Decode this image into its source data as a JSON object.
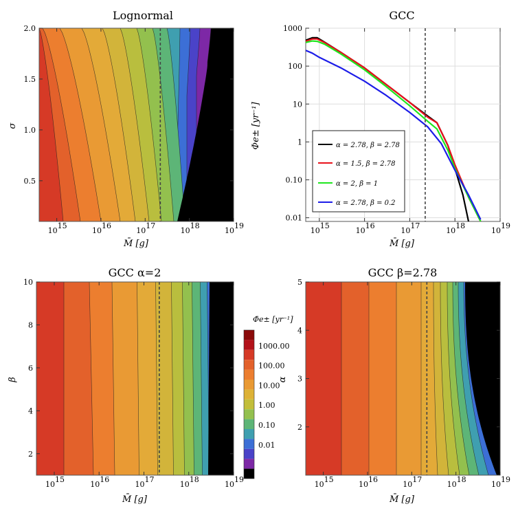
{
  "chart_data": [
    {
      "type": "contour",
      "title": "Lognormal",
      "xlabel": "M̄ [g]",
      "ylabel": "σ",
      "xscale": "log",
      "xlim": [
        400000000000000.0,
        1e+19
      ],
      "ylim": [
        0.1,
        2.0
      ],
      "x_tick_labels": [
        "10",
        "10",
        "10",
        "10",
        "10"
      ],
      "x_tick_exponents": [
        "15",
        "16",
        "17",
        "18",
        "19"
      ],
      "y_tick_labels": [
        "0.5",
        "1.0",
        "1.5",
        "2.0"
      ],
      "y_ticks": [
        0.5,
        1.0,
        1.5,
        2.0
      ],
      "vertical_line_x": 2.2e+17,
      "contour_levels_log10": [
        3,
        2.5,
        2,
        1.5,
        1,
        0.5,
        0,
        -0.5,
        -1,
        -1.5,
        -2,
        -2.5
      ]
    },
    {
      "type": "line",
      "title": "GCC",
      "xlabel": "M̄ [g]",
      "ylabel": "Φe± [yr⁻¹]",
      "xscale": "log",
      "yscale": "log",
      "xlim": [
        500000000000000.0,
        1e+19
      ],
      "ylim": [
        0.008,
        1000
      ],
      "x_tick_exponents": [
        "15",
        "16",
        "17",
        "18",
        "19"
      ],
      "y_tick_labels": [
        "1000",
        "100",
        "10",
        "1",
        "0.10",
        "0.01"
      ],
      "y_ticks": [
        1000,
        100,
        10,
        1,
        0.1,
        0.01
      ],
      "vertical_line_x": 2.2e+17,
      "legend_position": "bottom-left",
      "series": [
        {
          "name": "α = 2.78, β = 2.78",
          "color": "#000000",
          "x": [
            500000000000000.0,
            700000000000000.0,
            900000000000000.0,
            1300000000000000.0,
            3000000000000000.0,
            1e+16,
            3e+16,
            1e+17,
            2.5e+17,
            4e+17,
            7e+17,
            1e+18,
            1.5e+18,
            2e+18
          ],
          "y": [
            480,
            560,
            560,
            430,
            230,
            90,
            33,
            11,
            4.8,
            3.2,
            0.8,
            0.2,
            0.04,
            0.008
          ]
        },
        {
          "name": "α = 1.5, β = 2.78",
          "color": "#e8111b",
          "x": [
            500000000000000.0,
            700000000000000.0,
            900000000000000.0,
            1300000000000000.0,
            3000000000000000.0,
            1e+16,
            3e+16,
            1e+17,
            2.5e+17,
            4e+17,
            7e+17,
            1e+18,
            2e+18,
            3.7e+18
          ],
          "y": [
            450,
            520,
            520,
            420,
            230,
            90,
            33,
            11,
            4.5,
            3.2,
            0.8,
            0.25,
            0.035,
            0.008
          ]
        },
        {
          "name": "α = 2, β = 1",
          "color": "#1ee61e",
          "x": [
            500000000000000.0,
            700000000000000.0,
            900000000000000.0,
            1300000000000000.0,
            3000000000000000.0,
            1e+16,
            3e+16,
            1e+17,
            2.5e+17,
            4e+17,
            7e+17,
            1e+18,
            2e+18,
            3.7e+18
          ],
          "y": [
            420,
            460,
            450,
            380,
            210,
            80,
            29,
            9,
            3.5,
            2.2,
            0.6,
            0.2,
            0.035,
            0.008
          ]
        },
        {
          "name": "α = 2.78, β = 0.2",
          "color": "#1c1ce8",
          "x": [
            500000000000000.0,
            700000000000000.0,
            1000000000000000.0,
            3000000000000000.0,
            1e+16,
            3e+16,
            1e+17,
            2.5e+17,
            5e+17,
            1e+18,
            2e+18,
            3.7e+18
          ],
          "y": [
            260,
            220,
            170,
            90,
            40,
            17,
            6,
            2.5,
            0.9,
            0.18,
            0.04,
            0.009
          ]
        }
      ]
    },
    {
      "type": "contour",
      "title": "GCC α=2",
      "xlabel": "M̄ [g]",
      "ylabel": "β",
      "xscale": "log",
      "xlim": [
        400000000000000.0,
        1e+19
      ],
      "ylim": [
        1,
        10
      ],
      "x_tick_exponents": [
        "15",
        "16",
        "17",
        "18",
        "19"
      ],
      "y_tick_labels": [
        "2",
        "4",
        "6",
        "8",
        "10"
      ],
      "y_ticks": [
        2,
        4,
        6,
        8,
        10
      ],
      "vertical_line_x": 2.2e+17
    },
    {
      "type": "contour",
      "title": "GCC β=2.78",
      "xlabel": "M̄ [g]",
      "ylabel": "α",
      "xscale": "log",
      "xlim": [
        400000000000000.0,
        1e+19
      ],
      "ylim": [
        1,
        5
      ],
      "x_tick_exponents": [
        "15",
        "16",
        "17",
        "18",
        "19"
      ],
      "y_tick_labels": [
        "2",
        "3",
        "4",
        "5"
      ],
      "y_ticks": [
        2,
        3,
        4,
        5
      ],
      "vertical_line_x": 2.2e+17
    }
  ],
  "colorbar": {
    "title": "Φ̄e± [yr⁻¹]",
    "labels": [
      "1000.00",
      "100.00",
      "10.00",
      "1.00",
      "0.10",
      "0.01"
    ],
    "label_values": [
      1000,
      100,
      10,
      1,
      0.1,
      0.01
    ],
    "colors": [
      "#8b0a0a",
      "#b3121a",
      "#d63a26",
      "#e3612b",
      "#ec7e2f",
      "#e99a34",
      "#ddb236",
      "#c2be3a",
      "#93c04e",
      "#5db577",
      "#3f9fb0",
      "#3c6fd6",
      "#4a43c8",
      "#7d28a6",
      "#000000"
    ]
  },
  "palette_by_level": [
    "#d63a26",
    "#e3612b",
    "#ec7e2f",
    "#e99a34",
    "#e3aa38",
    "#d2b43a",
    "#b9be3e",
    "#93c04e",
    "#5db577",
    "#3f9fb0",
    "#3c6fd6",
    "#4a43c8",
    "#7d28a6"
  ]
}
